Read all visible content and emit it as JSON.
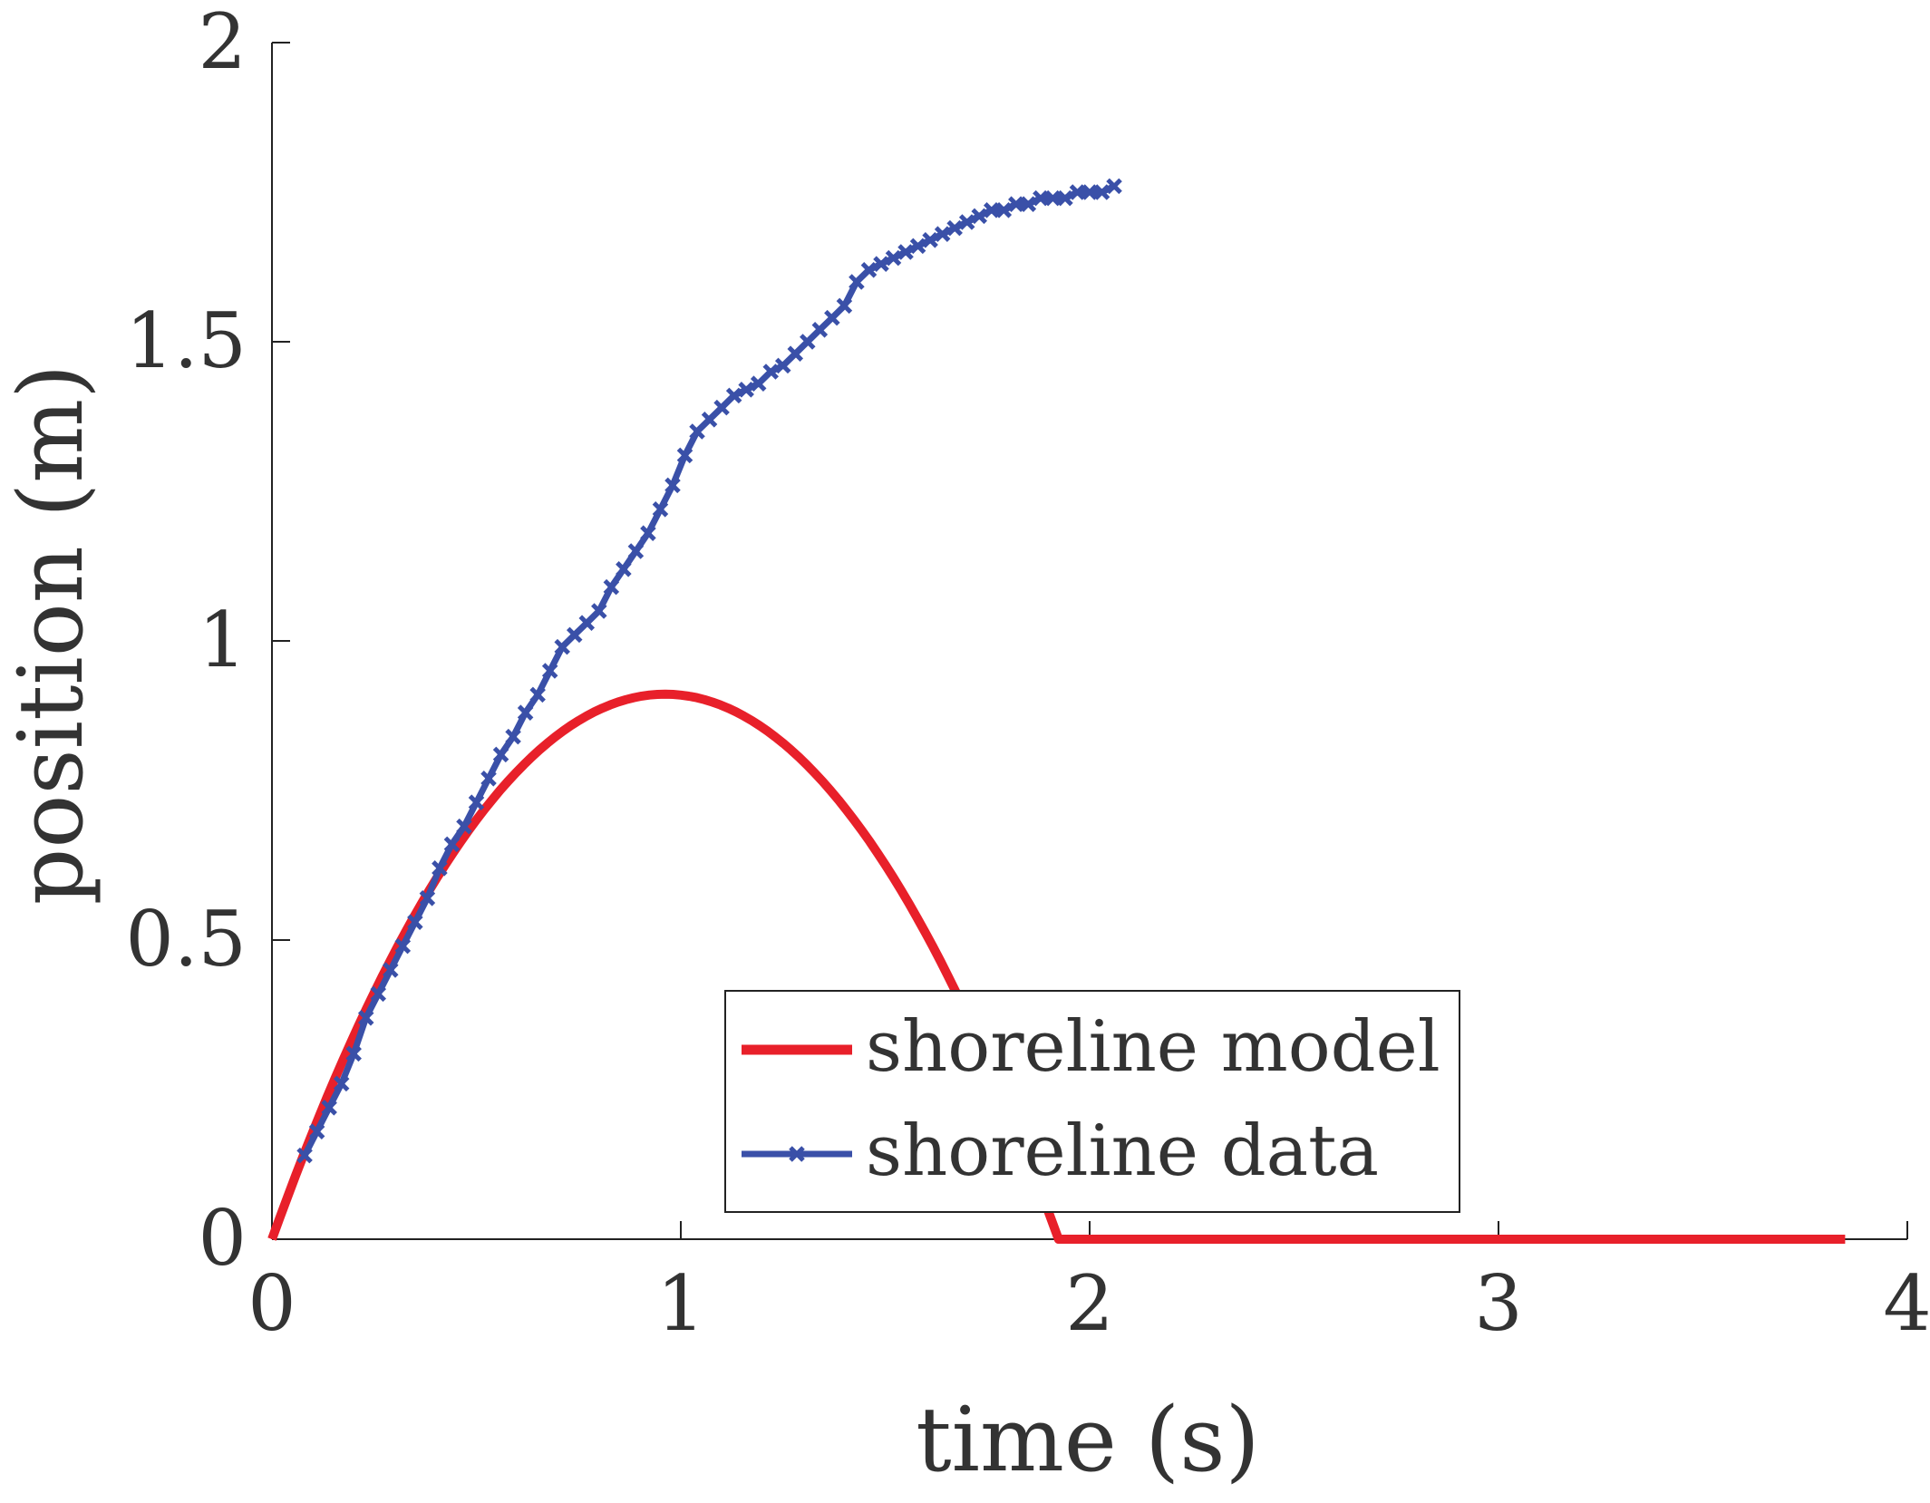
{
  "chart_data": {
    "type": "line",
    "title": "",
    "xlabel": "time (s)",
    "ylabel": "position (m)",
    "xlim": [
      0,
      4
    ],
    "ylim": [
      0,
      2
    ],
    "xticks": [
      0,
      1,
      2,
      3,
      4
    ],
    "yticks": [
      0,
      0.5,
      1,
      1.5,
      2
    ],
    "xtick_labels": [
      "0",
      "1",
      "2",
      "3",
      "4"
    ],
    "ytick_labels": [
      "0",
      "0.5",
      "1",
      "1.5",
      "2"
    ],
    "grid": false,
    "legend_position": "bottom-center",
    "series": [
      {
        "name": "shoreline model",
        "style": "line",
        "color": "#e8202a",
        "model": {
          "v0": 1.894,
          "a": -0.9845,
          "t_end": 3.848
        }
      },
      {
        "name": "shoreline data",
        "style": "line-with-x-markers",
        "color": "#3a50a8",
        "x": [
          0.08,
          0.11,
          0.14,
          0.17,
          0.2,
          0.23,
          0.26,
          0.29,
          0.32,
          0.35,
          0.38,
          0.41,
          0.44,
          0.47,
          0.5,
          0.53,
          0.56,
          0.59,
          0.62,
          0.65,
          0.68,
          0.71,
          0.74,
          0.77,
          0.8,
          0.83,
          0.86,
          0.89,
          0.92,
          0.95,
          0.98,
          1.01,
          1.04,
          1.07,
          1.1,
          1.13,
          1.16,
          1.19,
          1.22,
          1.25,
          1.28,
          1.31,
          1.34,
          1.37,
          1.4,
          1.43,
          1.46,
          1.49,
          1.52,
          1.55,
          1.58,
          1.61,
          1.64,
          1.67,
          1.7,
          1.73,
          1.76,
          1.79,
          1.82,
          1.85,
          1.88,
          1.91,
          1.94,
          1.97,
          2.0,
          2.03,
          2.06
        ],
        "y": [
          0.14,
          0.18,
          0.22,
          0.26,
          0.31,
          0.37,
          0.41,
          0.45,
          0.49,
          0.53,
          0.57,
          0.62,
          0.66,
          0.69,
          0.73,
          0.77,
          0.81,
          0.84,
          0.88,
          0.91,
          0.95,
          0.99,
          1.01,
          1.03,
          1.05,
          1.09,
          1.12,
          1.15,
          1.18,
          1.22,
          1.26,
          1.31,
          1.35,
          1.37,
          1.39,
          1.41,
          1.42,
          1.43,
          1.45,
          1.46,
          1.48,
          1.5,
          1.52,
          1.54,
          1.56,
          1.6,
          1.62,
          1.63,
          1.64,
          1.65,
          1.66,
          1.67,
          1.68,
          1.69,
          1.7,
          1.71,
          1.72,
          1.72,
          1.73,
          1.73,
          1.74,
          1.74,
          1.74,
          1.75,
          1.75,
          1.75,
          1.76
        ]
      }
    ]
  }
}
